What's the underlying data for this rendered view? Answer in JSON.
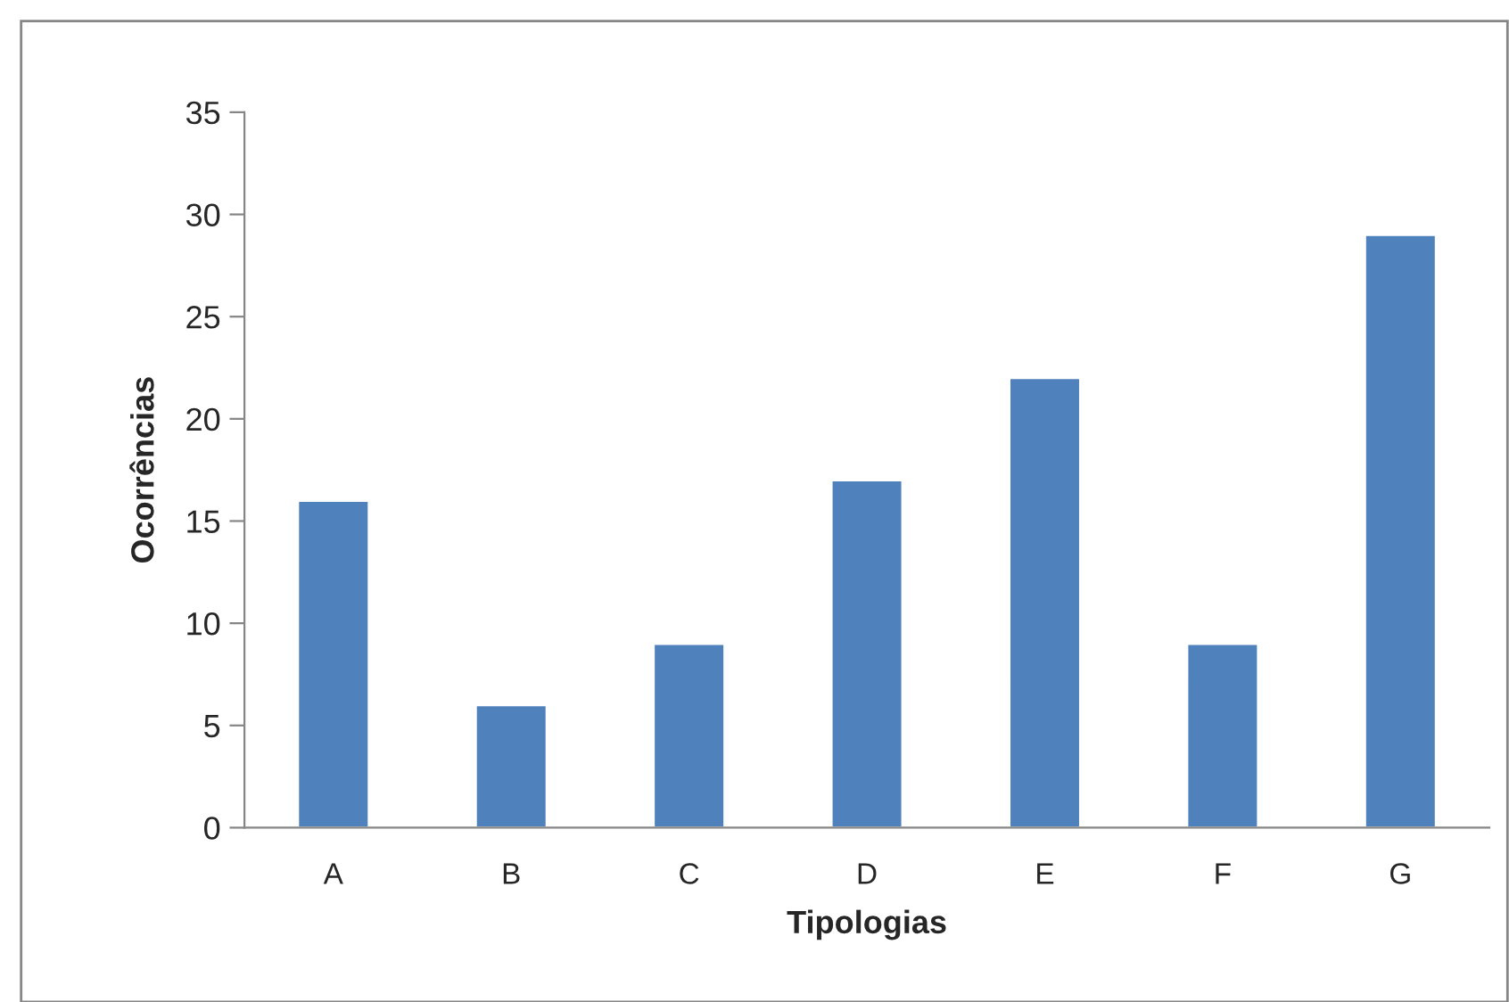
{
  "chart_data": {
    "type": "bar",
    "xlabel": "Tipologias",
    "ylabel": "Ocorrências",
    "categories": [
      "A",
      "B",
      "C",
      "D",
      "E",
      "F",
      "G"
    ],
    "values": [
      16,
      6,
      9,
      17,
      22,
      9,
      29
    ],
    "color": "#4f81bd",
    "ylim": [
      0,
      35
    ],
    "yticks": [
      0,
      5,
      10,
      15,
      20,
      25,
      30,
      35
    ],
    "grid": false,
    "legend": false
  }
}
